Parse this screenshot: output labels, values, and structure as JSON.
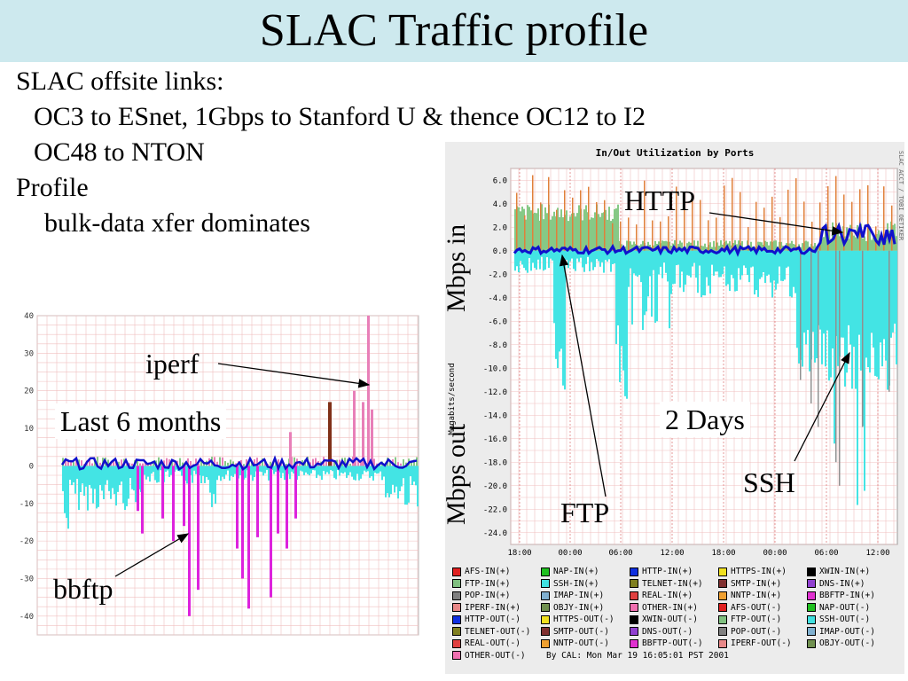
{
  "slide": {
    "title": "SLAC Traffic profile",
    "bullets": [
      {
        "level": 0,
        "text": "SLAC offsite links:"
      },
      {
        "level": 1,
        "text": "OC3 to ESnet, 1Gbps to Stanford U & thence OC12 to I2"
      },
      {
        "level": 1,
        "text": "OC48 to NTON"
      },
      {
        "level": 0,
        "text": "Profile"
      },
      {
        "level": 2,
        "text": "bulk-data xfer dominates"
      }
    ],
    "annotations": {
      "iperf": "iperf",
      "last6": "Last 6 months",
      "bbftp": "bbftp",
      "http": "HTTP",
      "mbps_in": "Mbps in",
      "mbps_out": "Mbps out",
      "two_days": "2 Days",
      "ssh": "SSH",
      "ftp": "FTP"
    }
  },
  "chart_data": [
    {
      "type": "area",
      "ylim": [
        -45,
        40
      ],
      "y_ticks": [
        "40",
        "30",
        "20",
        "10",
        "0",
        "-10",
        "-20",
        "-30",
        "-40"
      ],
      "series": [
        {
          "name": "iperf",
          "color": "#e87fb8",
          "peak": 40
        },
        {
          "name": "bbftp",
          "color": "#dd22dd",
          "peak": -40
        }
      ],
      "colors": {
        "in": "#86c986",
        "out": "#43e4e4",
        "http": "#1010cc",
        "iperf": "#e87fb8",
        "bbftp": "#dd22dd",
        "brown": "#803018"
      }
    },
    {
      "type": "area",
      "title": "In/Out Utilization by Ports",
      "ylabel": "Megabits/second",
      "side_label": "SLAC ACCT / TOBI OETIKER",
      "ylim": [
        -25,
        7
      ],
      "y_ticks": [
        "6.0",
        "4.0",
        "2.0",
        "0.0",
        "-2.0",
        "-4.0",
        "-6.0",
        "-8.0",
        "-10.0",
        "-12.0",
        "-14.0",
        "-16.0",
        "-18.0",
        "-20.0",
        "-22.0",
        "-24.0"
      ],
      "x_ticks": [
        "18:00",
        "00:00",
        "06:00",
        "12:00",
        "18:00",
        "00:00",
        "06:00",
        "12:00"
      ],
      "series": [
        {
          "name": "FTP-IN(+)",
          "peak": 4.0
        },
        {
          "name": "HTTP-IN(+)",
          "peak": 2.5
        },
        {
          "name": "SSH-OUT(-)",
          "peak": -14.0
        },
        {
          "name": "FTP-OUT(-)",
          "peak": -23.0
        }
      ],
      "colors": {
        "in": "#86c986",
        "out": "#43e4e4",
        "http": "#1010cc",
        "misc": "#e0803a",
        "grey": "#909090"
      }
    }
  ],
  "legend": {
    "items": [
      {
        "label": "AFS-IN(+)",
        "color": "#e02020"
      },
      {
        "label": "NAP-IN(+)",
        "color": "#20c020"
      },
      {
        "label": "HTTP-IN(+)",
        "color": "#1030e0"
      },
      {
        "label": "HTTPS-IN(+)",
        "color": "#f0e020"
      },
      {
        "label": "XWIN-IN(+)",
        "color": "#000000"
      },
      {
        "label": "FTP-IN(+)",
        "color": "#80c080"
      },
      {
        "label": "SSH-IN(+)",
        "color": "#40e0e0"
      },
      {
        "label": "TELNET-IN(+)",
        "color": "#808020"
      },
      {
        "label": "SMTP-IN(+)",
        "color": "#803030"
      },
      {
        "label": "DNS-IN(+)",
        "color": "#9040d0"
      },
      {
        "label": "POP-IN(+)",
        "color": "#808080"
      },
      {
        "label": "IMAP-IN(+)",
        "color": "#80b0d0"
      },
      {
        "label": "REAL-IN(+)",
        "color": "#e04040"
      },
      {
        "label": "NNTP-IN(+)",
        "color": "#f0a030"
      },
      {
        "label": "BBFTP-IN(+)",
        "color": "#e030d0"
      },
      {
        "label": "IPERF-IN(+)",
        "color": "#e88888"
      },
      {
        "label": "OBJY-IN(+)",
        "color": "#709050"
      },
      {
        "label": "OTHER-IN(+)",
        "color": "#f070b0"
      },
      {
        "label": "AFS-OUT(-)",
        "color": "#e02020"
      },
      {
        "label": "NAP-OUT(-)",
        "color": "#20c020"
      },
      {
        "label": "HTTP-OUT(-)",
        "color": "#1030e0"
      },
      {
        "label": "HTTPS-OUT(-)",
        "color": "#f0e020"
      },
      {
        "label": "XWIN-OUT(-)",
        "color": "#000000"
      },
      {
        "label": "FTP-OUT(-)",
        "color": "#80c080"
      },
      {
        "label": "SSH-OUT(-)",
        "color": "#40e0e0"
      },
      {
        "label": "TELNET-OUT(-)",
        "color": "#808020"
      },
      {
        "label": "SMTP-OUT(-)",
        "color": "#803030"
      },
      {
        "label": "DNS-OUT(-)",
        "color": "#9040d0"
      },
      {
        "label": "POP-OUT(-)",
        "color": "#808080"
      },
      {
        "label": "IMAP-OUT(-)",
        "color": "#80b0d0"
      },
      {
        "label": "REAL-OUT(-)",
        "color": "#e04040"
      },
      {
        "label": "NNTP-OUT(-)",
        "color": "#f0a030"
      },
      {
        "label": "BBFTP-OUT(-)",
        "color": "#e030d0"
      },
      {
        "label": "IPERF-OUT(-)",
        "color": "#e88888"
      },
      {
        "label": "OBJY-OUT(-)",
        "color": "#709050"
      },
      {
        "label": "OTHER-OUT(-)",
        "color": "#f070b0"
      }
    ],
    "credit": "By CAL: Mon Mar 19 16:05:01 PST 2001"
  }
}
